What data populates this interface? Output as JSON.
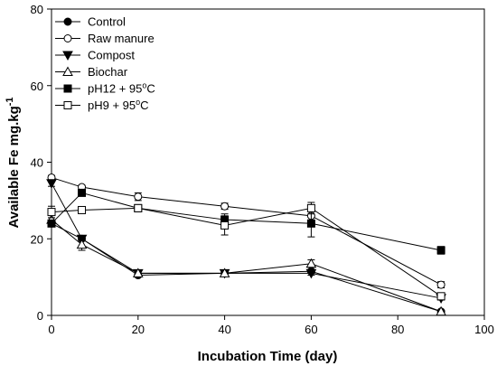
{
  "chart_data": {
    "type": "line",
    "title": "",
    "xlabel": "Incubation Time (day)",
    "ylabel": {
      "main": "Available Fe mg.kg",
      "superscript": "-1"
    },
    "xlim": [
      0,
      100
    ],
    "ylim": [
      0,
      80
    ],
    "xticks": [
      0,
      20,
      40,
      60,
      80,
      100
    ],
    "yticks": [
      0,
      20,
      40,
      60,
      80
    ],
    "grid": false,
    "legend_position": "top-left",
    "x": [
      0,
      7,
      20,
      40,
      60,
      90
    ],
    "series": [
      {
        "name": "Control",
        "marker": "filled-circle",
        "values": [
          24,
          20,
          10.5,
          11,
          11.5,
          1
        ],
        "errors": [
          0.5,
          0.5,
          0.5,
          0.5,
          0.5,
          0.3
        ]
      },
      {
        "name": "Raw manure",
        "marker": "open-circle",
        "values": [
          36,
          33.5,
          31,
          28.5,
          26,
          8
        ],
        "errors": [
          0.5,
          0.5,
          1,
          0.8,
          1.2,
          0.8
        ]
      },
      {
        "name": "Compost",
        "marker": "filled-triangle-down",
        "values": [
          34.5,
          20,
          11,
          11,
          11,
          4.5
        ],
        "errors": [
          0.8,
          0.5,
          0.5,
          0.5,
          0.5,
          0.5
        ]
      },
      {
        "name": "Biochar",
        "marker": "open-triangle-up",
        "values": [
          25,
          18.5,
          11,
          11,
          13.5,
          1
        ],
        "errors": [
          0.5,
          1.5,
          0.5,
          0.5,
          1,
          0.3
        ]
      },
      {
        "name": "pH12 + 95",
        "name_suffix": "C",
        "superscript": "o",
        "marker": "filled-square",
        "values": [
          24,
          32,
          28,
          25,
          24,
          17
        ],
        "errors": [
          0.8,
          0.8,
          0.8,
          1.5,
          3.5,
          1
        ]
      },
      {
        "name": "pH9 + 95",
        "name_suffix": "C",
        "superscript": "o",
        "marker": "open-square",
        "values": [
          27,
          27.5,
          28,
          23.5,
          28,
          5
        ],
        "errors": [
          1.5,
          0.5,
          0.5,
          2.5,
          1.5,
          0.5
        ]
      }
    ]
  }
}
